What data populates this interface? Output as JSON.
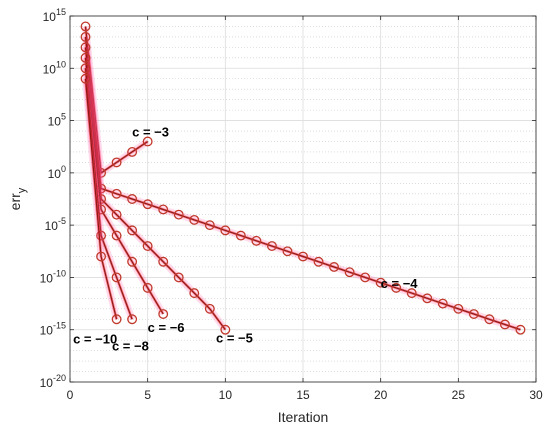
{
  "chart_data": {
    "type": "line",
    "xlabel": "Iteration",
    "ylabel": "err",
    "ylabel_sub": "y",
    "xlim": [
      0,
      30
    ],
    "ylim_exp": [
      -20,
      15
    ],
    "yscale": "log",
    "grid": true,
    "x_ticks": [
      0,
      5,
      10,
      15,
      20,
      25,
      30
    ],
    "y_tick_exps": [
      -20,
      -15,
      -10,
      -5,
      0,
      5,
      10,
      15
    ],
    "line_color": "#8b1a1a",
    "marker_color": "#c0392b",
    "series": [
      {
        "label": "c = −3",
        "x": [
          1,
          2,
          3,
          4,
          5
        ],
        "log10y": [
          14,
          0,
          1,
          2,
          3
        ]
      },
      {
        "label": "c = −4",
        "x": [
          1,
          2,
          3,
          4,
          5,
          6,
          7,
          8,
          9,
          10,
          11,
          12,
          13,
          14,
          15,
          16,
          17,
          18,
          19,
          20,
          21,
          22,
          23,
          24,
          25,
          26,
          27,
          28,
          29
        ],
        "log10y": [
          13,
          -1.5,
          -2,
          -2.5,
          -3,
          -3.5,
          -4,
          -4.5,
          -5,
          -5.5,
          -6,
          -6.5,
          -7,
          -7.5,
          -8,
          -8.5,
          -9,
          -9.5,
          -10,
          -10.5,
          -11,
          -11.5,
          -12,
          -12.5,
          -13,
          -13.5,
          -14,
          -14.5,
          -15
        ]
      },
      {
        "label": "c = −5",
        "x": [
          1,
          2,
          3,
          4,
          5,
          6,
          7,
          8,
          9,
          10
        ],
        "log10y": [
          12,
          -2.5,
          -4,
          -5.5,
          -7,
          -8.5,
          -10,
          -11.5,
          -13,
          -15
        ]
      },
      {
        "label": "c = −6",
        "x": [
          1,
          2,
          3,
          4,
          5,
          6
        ],
        "log10y": [
          11,
          -3.5,
          -6,
          -8.5,
          -11,
          -13.5
        ]
      },
      {
        "label": "c = −8",
        "x": [
          1,
          2,
          3,
          4
        ],
        "log10y": [
          10,
          -6,
          -10,
          -14
        ]
      },
      {
        "label": "c = −10",
        "x": [
          1,
          2,
          3
        ],
        "log10y": [
          9,
          -8,
          -14
        ]
      }
    ],
    "annotations": [
      {
        "text": "c = −3",
        "x": 4.0,
        "log10y": 3.5
      },
      {
        "text": "c = −4",
        "x": 20.0,
        "log10y": -11.0
      },
      {
        "text": "c = −5",
        "x": 9.4,
        "log10y": -16.2
      },
      {
        "text": "c = −6",
        "x": 5.0,
        "log10y": -15.2
      },
      {
        "text": "c = −8",
        "x": 2.7,
        "log10y": -17.0
      },
      {
        "text": "c = −10",
        "x": 0.2,
        "log10y": -16.3
      }
    ]
  }
}
